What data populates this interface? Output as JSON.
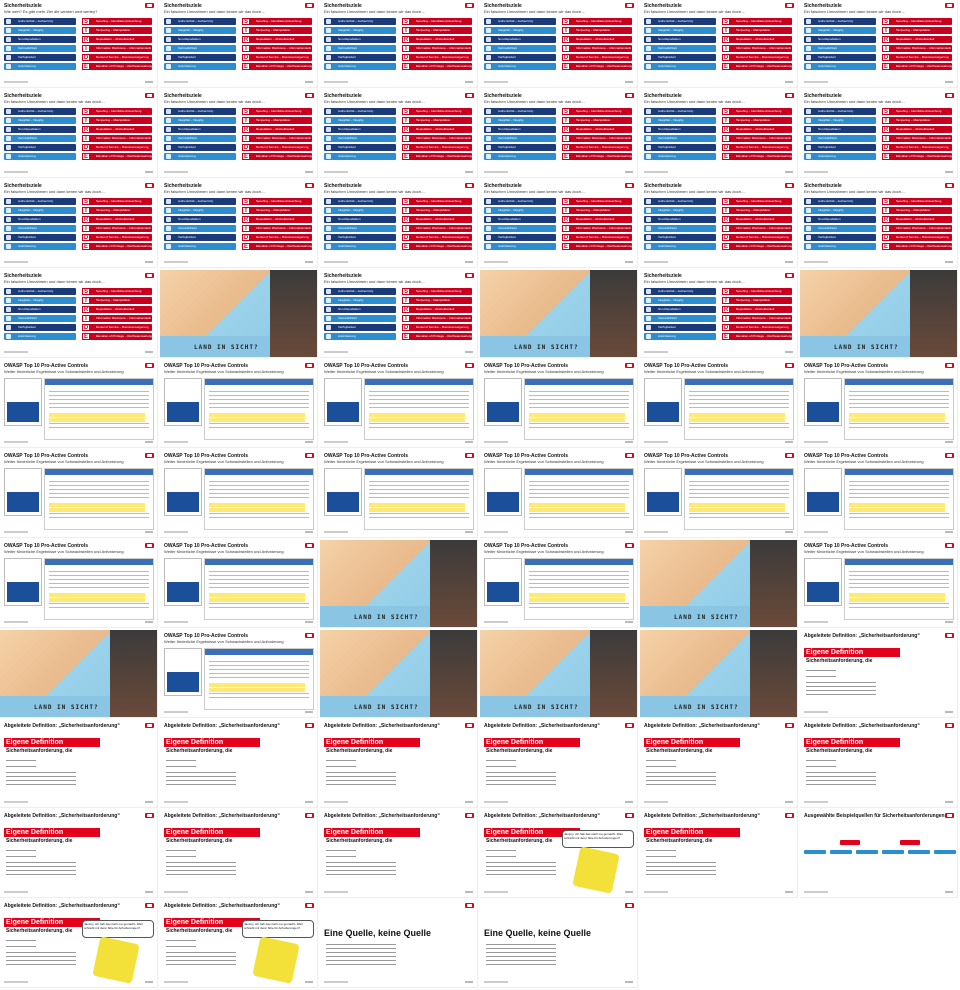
{
  "grid": {
    "columns": 6,
    "rows": 11
  },
  "colors": {
    "db_red": "#e2001a",
    "navy": "#1a3a7a",
    "cyan": "#2b8ed0",
    "risk_red": "#c8001e"
  },
  "security_goals": {
    "title": "Sicherheitsziele",
    "subtitle_first": "Wie wert? Es gibt mehr Ziel die werden wert wertey?",
    "subtitle": "Ein falschen Umnahmen und dann kenen wir das doch....",
    "stride_letters": [
      "S",
      "T",
      "R",
      "I",
      "D",
      "E"
    ],
    "left_items": [
      "Authentizität – Authenticity",
      "Integrität – Integrity",
      "Non-Repudiation",
      "Vertraulichkeit",
      "Verfügbarkeit",
      "Autorisierung"
    ],
    "right_items": [
      "Spoofing – Identitätsvortäuschung",
      "Tampering – Manipulation",
      "Repudiation – Abstreitbarkeit",
      "Information Disclosure – Informationsleck",
      "Denial of Service – Dienstverweigerung",
      "Elevation of Privilege – Rechteausweitung"
    ]
  },
  "owasp": {
    "title": "OWASP Top 10 Pro-Active Controls",
    "subtitle": "Weiter förderliche Ergebnisse von Schwachstellen und Anforderung"
  },
  "teaser": {
    "text": "LAND IN SICHT?"
  },
  "definition": {
    "heading": "Abgeleitete Definition: „Sicherheitsanforderung“",
    "red_title": "Eigene Definition",
    "term": "Sicherheitsanforderung, die",
    "bubble": "Jammy, ich hab das nach me gemacht. Was schreibt mir denn bitte für Anforderungen?"
  },
  "examples": {
    "title": "Ausgewählte Beispielquellen für Sicherheitsanforderungen"
  },
  "source": {
    "title": "Eine Quelle, keine Quelle"
  }
}
